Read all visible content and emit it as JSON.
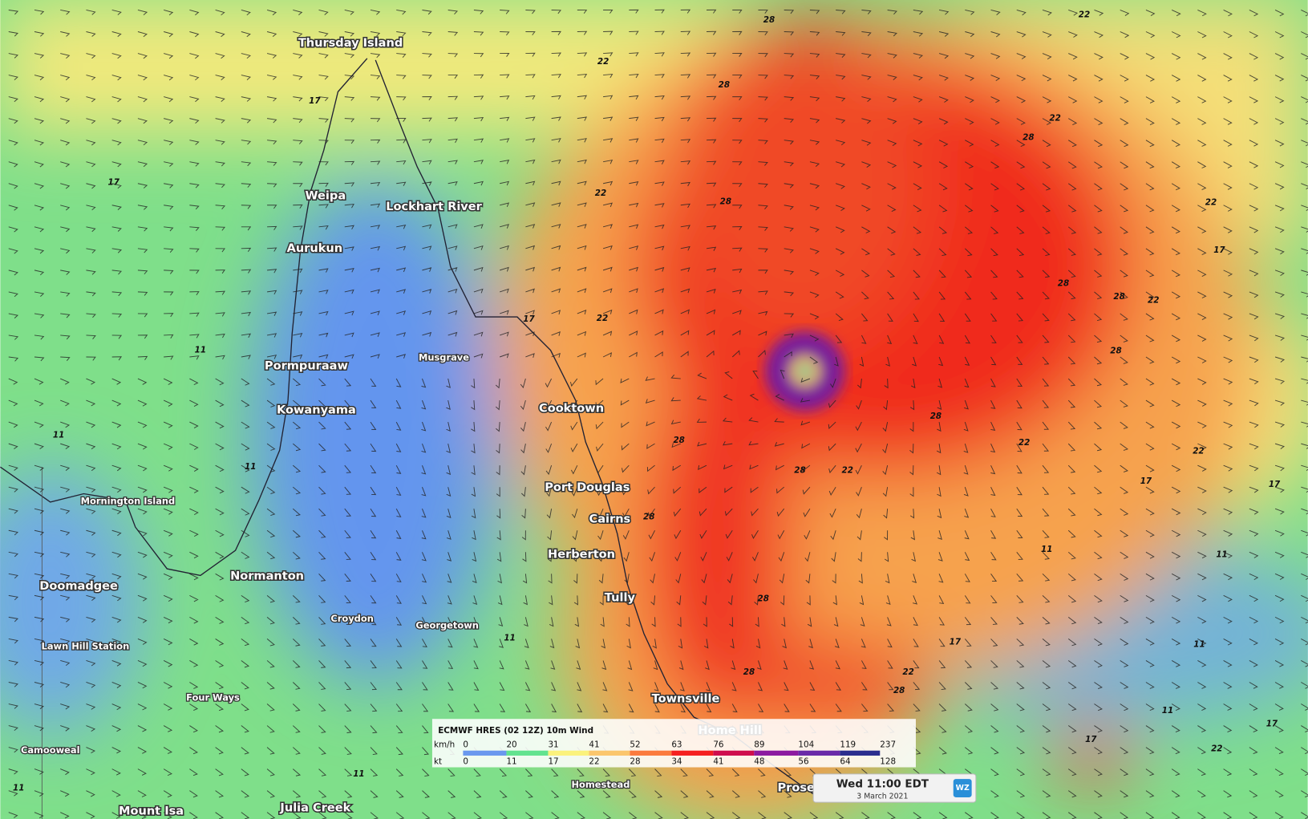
{
  "places": [
    "Thursday Island",
    "Weipa",
    "Lockhart River",
    "Aurukun",
    "Pormpuraaw",
    "Musgrave",
    "Kowanyama",
    "Cooktown",
    "Port Douglas",
    "Mornington Island",
    "Cairns",
    "Herberton",
    "Normanton",
    "Doomadgee",
    "Tully",
    "Croydon",
    "Georgetown",
    "Lawn Hill Station",
    "Four Ways",
    "Townsville",
    "Home Hill",
    "Camooweal",
    "Homestead",
    "Proserpine",
    "Julia Creek",
    "Mount Isa"
  ],
  "legend": {
    "title": "ECMWF HRES (02 12Z) 10m Wind",
    "units": [
      "km/h",
      "kt"
    ],
    "kmh": [
      0,
      20,
      31,
      41,
      52,
      63,
      76,
      89,
      104,
      119,
      237
    ],
    "kt": [
      0,
      11,
      17,
      22,
      28,
      34,
      41,
      48,
      56,
      64,
      128
    ],
    "colors": [
      "#6a98ee",
      "#62e38f",
      "#fbf27c",
      "#fbc66c",
      "#fb7b3e",
      "#f52020",
      "#cf0e4d",
      "#8c1aa0",
      "#6a2aa8",
      "#2b2e8e"
    ]
  },
  "time": {
    "label": "Wed 11:00 EDT",
    "date": "3 March 2021",
    "logo": "WZ"
  },
  "contour_labels": [
    22,
    28,
    22,
    28,
    22,
    28,
    22,
    28,
    22,
    17,
    28,
    28,
    22,
    17,
    22,
    28,
    28,
    28,
    22,
    22,
    28,
    22,
    17,
    17,
    28,
    11,
    11,
    28,
    17,
    11,
    28,
    28,
    22,
    11,
    17,
    22,
    17,
    11,
    11,
    11,
    17,
    17,
    11,
    11,
    11
  ]
}
